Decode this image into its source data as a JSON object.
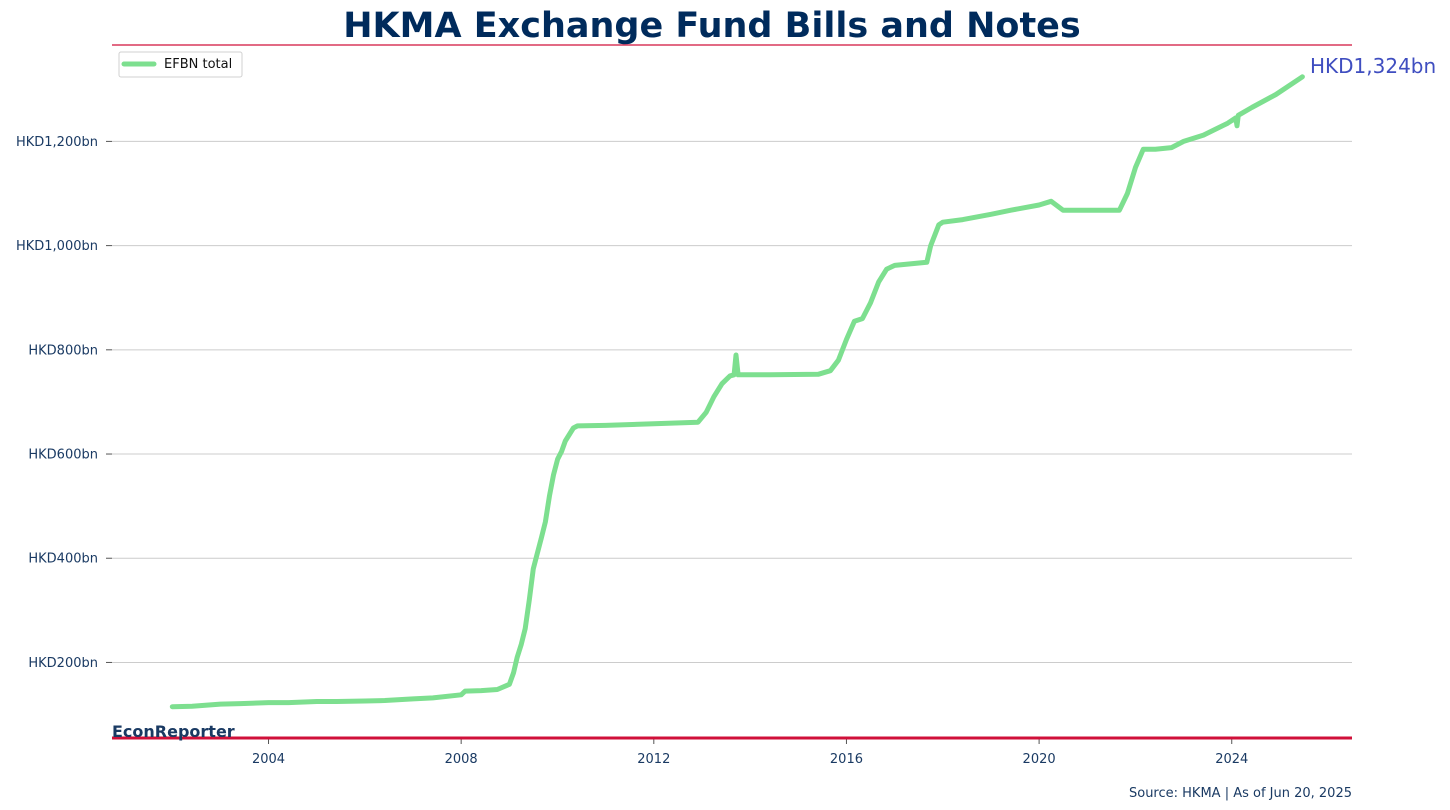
{
  "colors": {
    "title": "#002b5c",
    "accent_red": "#d0103a",
    "series": "#7ddf8f",
    "tick_text": "#1a3a63",
    "grid": "#cccccc",
    "last_value": "#3f4ec0"
  },
  "footer": {
    "brand": "EconReporter",
    "source": "Source: HKMA | As of Jun 20, 2025"
  },
  "chart_data": {
    "type": "line",
    "title": "HKMA Exchange Fund Bills and Notes",
    "xlabel": "",
    "ylabel": "",
    "x_axis": "date",
    "xlim": [
      "2000-10-01",
      "2026-07-01"
    ],
    "ylim": [
      55,
      1385
    ],
    "y_ticks": [
      {
        "value": 200,
        "label": "HKD200bn"
      },
      {
        "value": 400,
        "label": "HKD400bn"
      },
      {
        "value": 600,
        "label": "HKD600bn"
      },
      {
        "value": 800,
        "label": "HKD800bn"
      },
      {
        "value": 1000,
        "label": "HKD1,000bn"
      },
      {
        "value": 1200,
        "label": "HKD1,200bn"
      }
    ],
    "x_ticks": [
      {
        "value": "2004-01-01",
        "label": "2004"
      },
      {
        "value": "2008-01-01",
        "label": "2008"
      },
      {
        "value": "2012-01-01",
        "label": "2012"
      },
      {
        "value": "2016-01-01",
        "label": "2016"
      },
      {
        "value": "2020-01-01",
        "label": "2020"
      },
      {
        "value": "2024-01-01",
        "label": "2024"
      }
    ],
    "grid": "horizontal",
    "legend": {
      "position": "top-left",
      "entries": [
        "EFBN total"
      ]
    },
    "last_value_label": "HKD1,324bn",
    "series": [
      {
        "name": "EFBN total",
        "points": [
          [
            "2002-01-01",
            115
          ],
          [
            "2002-06-01",
            116
          ],
          [
            "2003-01-01",
            120
          ],
          [
            "2003-06-01",
            121
          ],
          [
            "2004-01-01",
            123
          ],
          [
            "2004-06-01",
            123
          ],
          [
            "2005-01-01",
            125
          ],
          [
            "2005-06-01",
            125
          ],
          [
            "2006-01-01",
            126
          ],
          [
            "2006-06-01",
            127
          ],
          [
            "2007-01-01",
            130
          ],
          [
            "2007-06-01",
            132
          ],
          [
            "2008-01-01",
            138
          ],
          [
            "2008-02-01",
            145
          ],
          [
            "2008-06-01",
            146
          ],
          [
            "2008-10-01",
            148
          ],
          [
            "2009-01-01",
            158
          ],
          [
            "2009-02-01",
            180
          ],
          [
            "2009-03-01",
            210
          ],
          [
            "2009-04-01",
            235
          ],
          [
            "2009-05-01",
            265
          ],
          [
            "2009-06-01",
            320
          ],
          [
            "2009-07-01",
            380
          ],
          [
            "2009-08-01",
            410
          ],
          [
            "2009-09-01",
            440
          ],
          [
            "2009-10-01",
            470
          ],
          [
            "2009-11-01",
            520
          ],
          [
            "2009-12-01",
            560
          ],
          [
            "2010-01-01",
            590
          ],
          [
            "2010-02-01",
            605
          ],
          [
            "2010-03-01",
            625
          ],
          [
            "2010-05-01",
            650
          ],
          [
            "2010-06-01",
            654
          ],
          [
            "2011-01-01",
            655
          ],
          [
            "2012-01-01",
            658
          ],
          [
            "2012-12-01",
            661
          ],
          [
            "2013-02-01",
            680
          ],
          [
            "2013-04-01",
            710
          ],
          [
            "2013-06-01",
            735
          ],
          [
            "2013-08-01",
            750
          ],
          [
            "2013-09-01",
            752
          ],
          [
            "2013-09-15",
            790
          ],
          [
            "2013-10-01",
            752
          ],
          [
            "2014-06-01",
            752
          ],
          [
            "2015-06-01",
            753
          ],
          [
            "2015-09-01",
            760
          ],
          [
            "2015-11-01",
            780
          ],
          [
            "2016-01-01",
            820
          ],
          [
            "2016-03-01",
            855
          ],
          [
            "2016-05-01",
            860
          ],
          [
            "2016-07-01",
            890
          ],
          [
            "2016-09-01",
            930
          ],
          [
            "2016-11-01",
            955
          ],
          [
            "2017-01-01",
            962
          ],
          [
            "2017-09-01",
            968
          ],
          [
            "2017-10-01",
            1000
          ],
          [
            "2017-12-01",
            1040
          ],
          [
            "2018-01-01",
            1045
          ],
          [
            "2018-06-01",
            1050
          ],
          [
            "2019-01-01",
            1060
          ],
          [
            "2019-06-01",
            1068
          ],
          [
            "2020-01-01",
            1078
          ],
          [
            "2020-04-01",
            1085
          ],
          [
            "2020-07-01",
            1068
          ],
          [
            "2021-01-01",
            1068
          ],
          [
            "2021-09-01",
            1068
          ],
          [
            "2021-11-01",
            1100
          ],
          [
            "2022-01-01",
            1150
          ],
          [
            "2022-03-01",
            1185
          ],
          [
            "2022-06-01",
            1185
          ],
          [
            "2022-10-01",
            1188
          ],
          [
            "2023-01-01",
            1200
          ],
          [
            "2023-06-01",
            1212
          ],
          [
            "2023-12-01",
            1235
          ],
          [
            "2024-02-01",
            1245
          ],
          [
            "2024-02-10",
            1230
          ],
          [
            "2024-02-20",
            1250
          ],
          [
            "2024-06-01",
            1265
          ],
          [
            "2024-12-01",
            1290
          ],
          [
            "2025-06-20",
            1324
          ]
        ]
      }
    ]
  }
}
